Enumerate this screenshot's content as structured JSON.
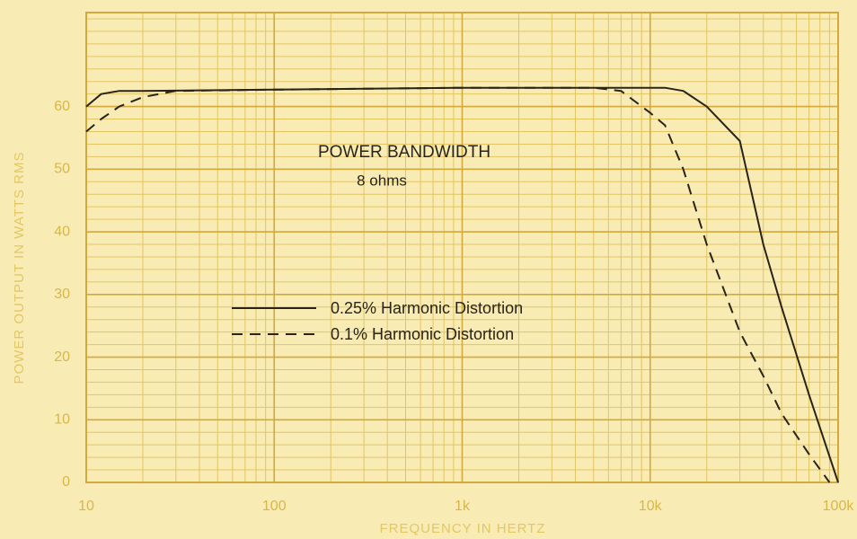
{
  "chart_data": {
    "type": "line",
    "title": "POWER BANDWIDTH",
    "subtitle": "8 ohms",
    "x_label": "FREQUENCY IN HERTZ",
    "y_label": "POWER OUTPUT IN WATTS RMS",
    "log_x": true,
    "grid": true,
    "xlim": [
      10,
      100000
    ],
    "ylim": [
      0,
      75
    ],
    "xticks": [
      10,
      100,
      {
        "value": 1000,
        "label": "1k"
      },
      {
        "value": 10000,
        "label": "10k"
      },
      {
        "value": 100000,
        "label": "100k"
      }
    ],
    "yticks": [
      0,
      10,
      20,
      30,
      40,
      50,
      60
    ],
    "series": [
      {
        "name": "0.25% Harmonic Distortion",
        "color": "#2a2418",
        "dash": false,
        "x": [
          10,
          12,
          15,
          20,
          100,
          1000,
          5000,
          12000,
          15000,
          20000,
          30000,
          40000,
          50000,
          70000,
          100000
        ],
        "values": [
          60,
          62,
          62.5,
          62.5,
          62.7,
          63,
          63,
          63,
          62.5,
          60,
          54.5,
          38,
          28,
          14,
          0
        ]
      },
      {
        "name": "0.1% Harmonic Distortion",
        "color": "#2a2418",
        "dash": true,
        "x": [
          10,
          12,
          15,
          20,
          30,
          100,
          1000,
          5000,
          7000,
          10000,
          12000,
          15000,
          20000,
          30000,
          40000,
          50000,
          70000,
          90000
        ],
        "values": [
          56,
          58,
          60,
          61.5,
          62.5,
          62.7,
          63,
          63,
          62.5,
          59,
          57,
          50,
          38,
          24,
          17,
          11,
          4.5,
          0
        ]
      }
    ]
  }
}
